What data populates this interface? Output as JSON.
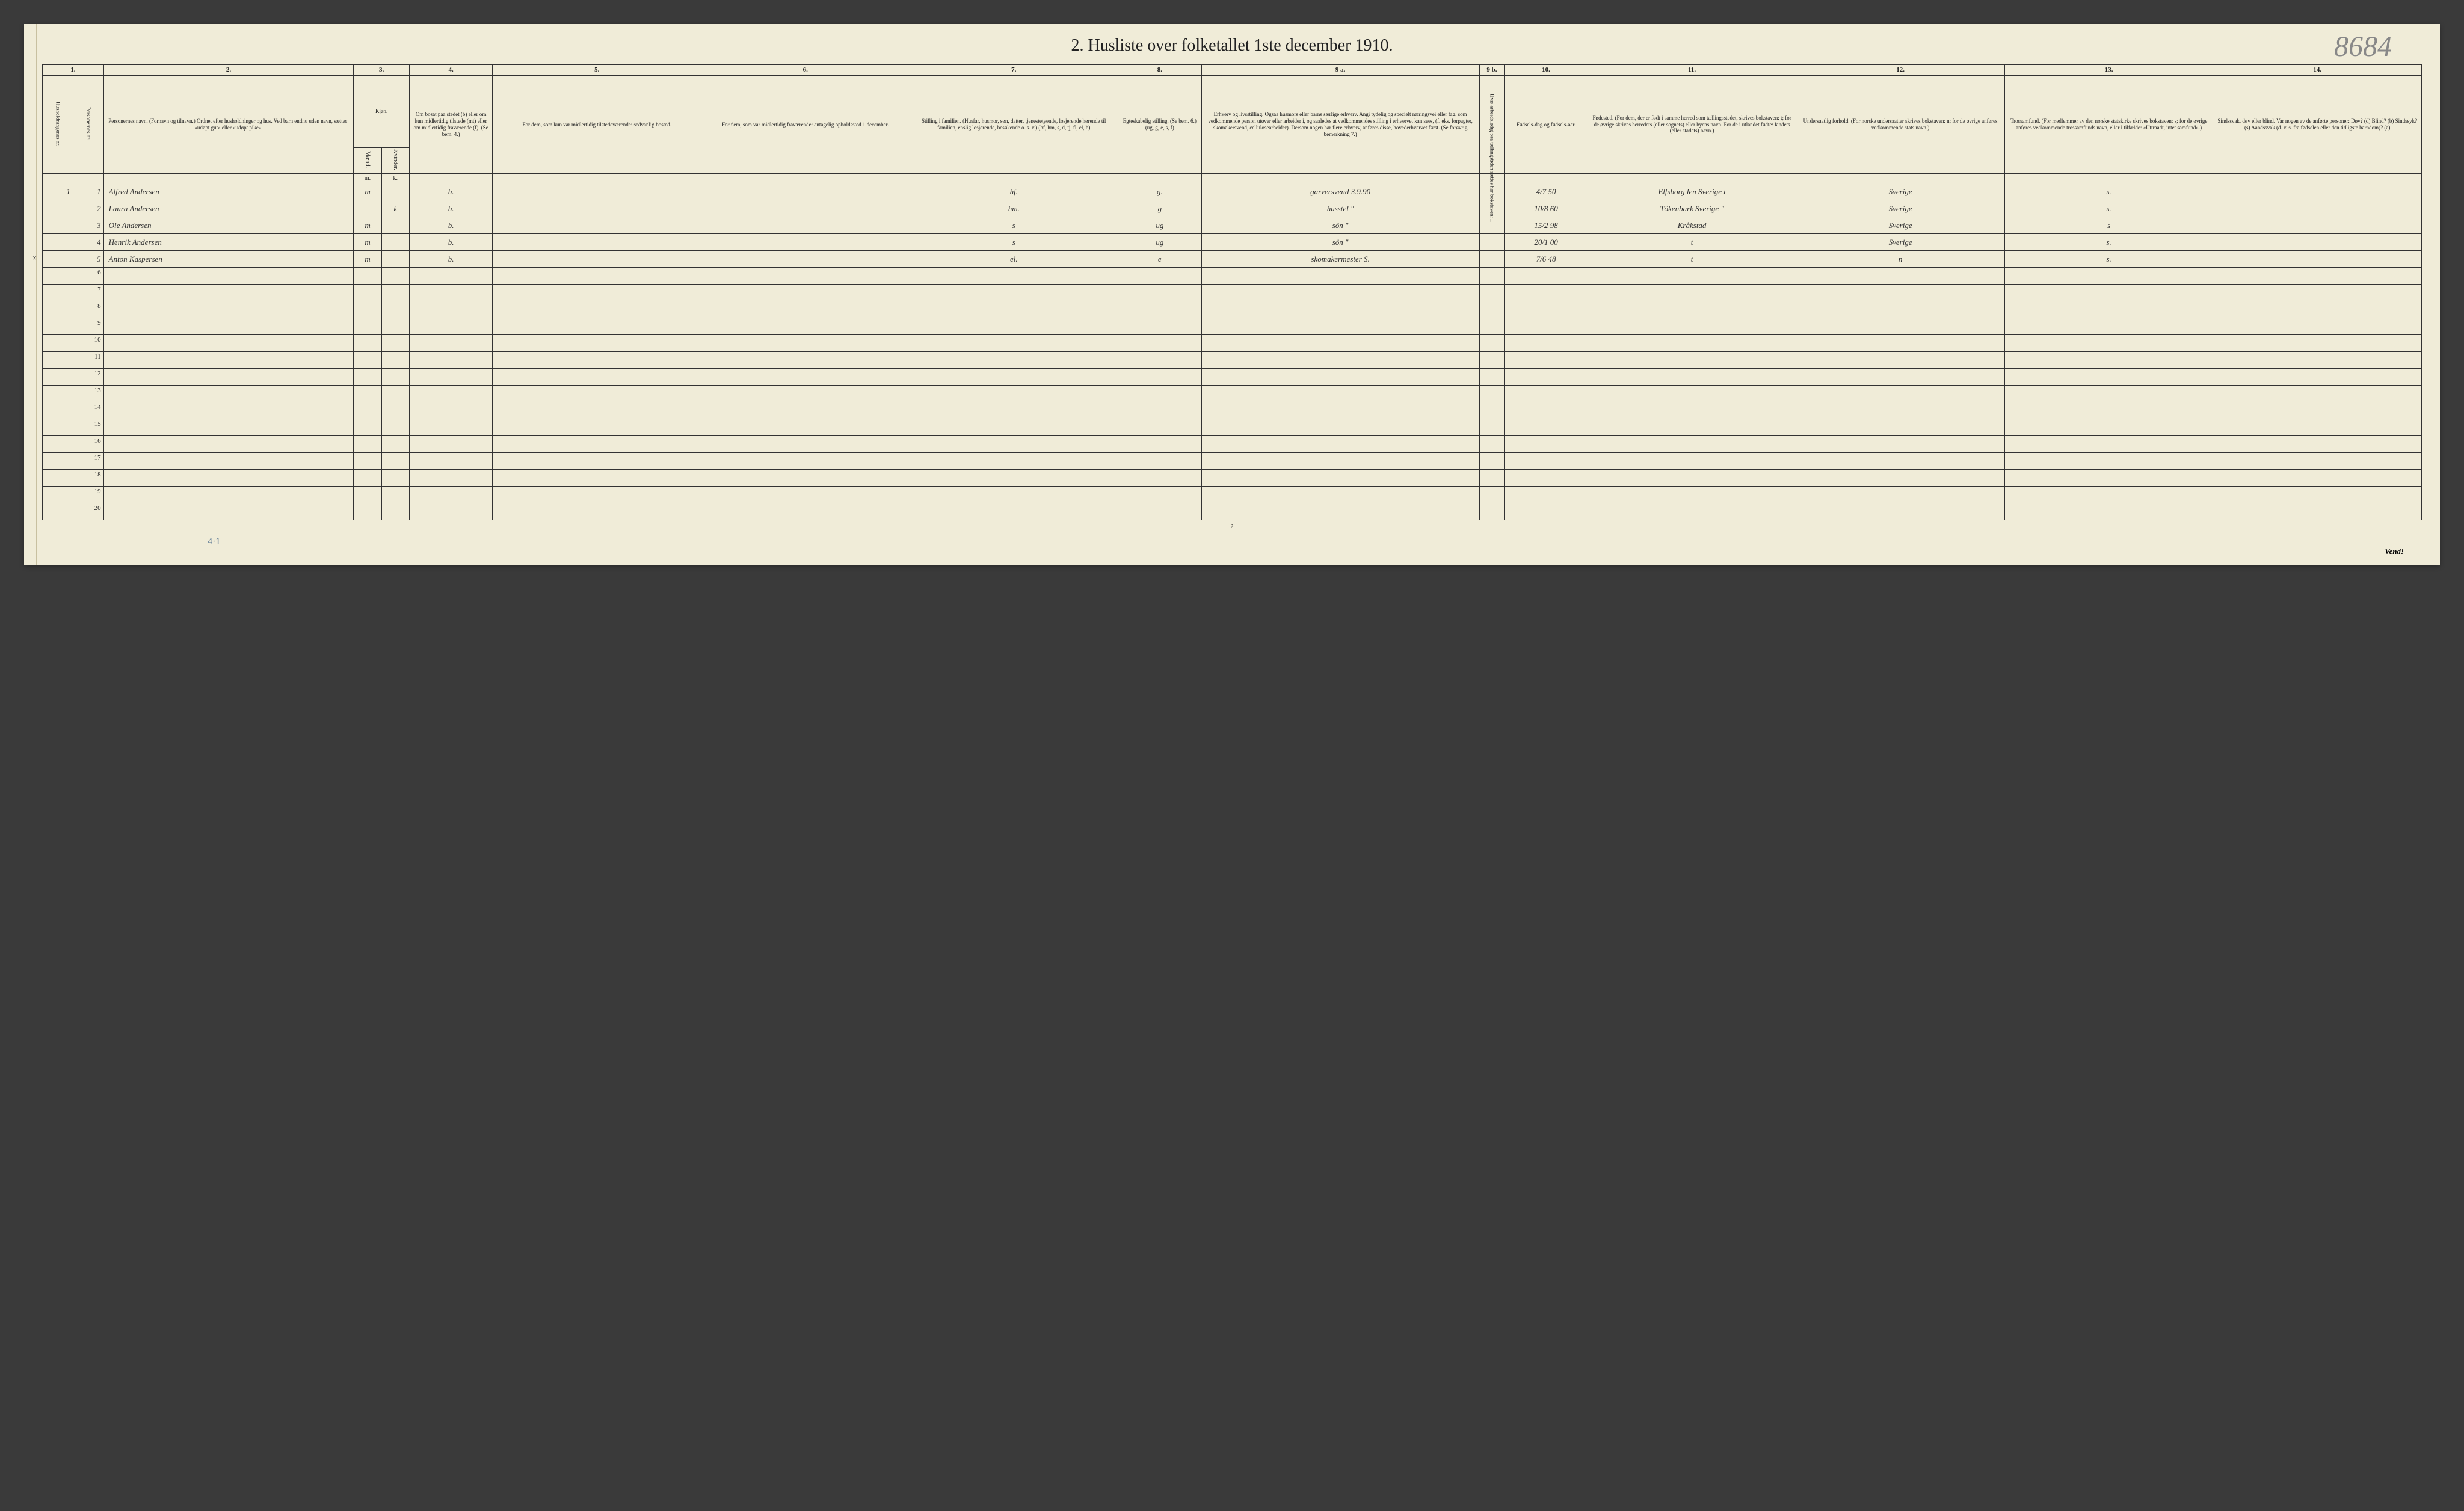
{
  "title": "2.  Husliste over folketallet 1ste december 1910.",
  "handwritten_top": "8684",
  "handwritten_bottom": "4·1",
  "footer": "Vend!",
  "page_number": "2",
  "column_numbers": [
    "1.",
    "",
    "2.",
    "3.",
    "4.",
    "5.",
    "6.",
    "7.",
    "8.",
    "9 a.",
    "9 b.",
    "10.",
    "11.",
    "12.",
    "13.",
    "14."
  ],
  "headers": {
    "col1": "Husholdningenes nr.",
    "col1b": "Personernes nr.",
    "col2": "Personernes navn.\n(Fornavn og tilnavn.)\nOrdnet efter husholdninger og hus.\nVed barn endnu uden navn, sættes: «udøpt gut» eller «udøpt pike».",
    "col3a": "Kjøn.",
    "col3b": "Mænd.",
    "col3c": "Kvinder.",
    "col4": "Om bosat paa stedet (b) eller om kun midlertidig tilstede (mt) eller om midlertidig fraværende (f).\n(Se bem. 4.)",
    "col5": "For dem, som kun var midlertidig tilstedeværende:\nsedvanlig bosted.",
    "col6": "For dem, som var midlertidig fraværende:\nantagelig opholdssted 1 december.",
    "col7": "Stilling i familien.\n(Husfar, husmor, søn, datter, tjenestetyende, losjerende hørende til familien, enslig losjerende, besøkende o. s. v.)\n(hf, hm, s, d, tj, fl, el, b)",
    "col8": "Egteskabelig stilling.\n(Se bem. 6.)\n(ug, g, e, s, f)",
    "col9a": "Erhverv og livsstilling.\nOgsaa husmors eller barns særlige erhverv.\nAngi tydelig og specielt næringsvei eller fag, som vedkommende person utøver eller arbeider i, og saaledes at vedkommendes stilling i erhvervet kan sees, (f. eks. forpagter, skomakersvend, cellulosearbeider). Dersom nogen har flere erhverv, anføres disse, hovederhvervet først.\n(Se forøvrig bemerkning 7.)",
    "col9b": "Hvis arbeidsledig paa tællingstiden sættes her bokstaven: l.",
    "col10": "Fødsels-dag og fødsels-aar.",
    "col11": "Fødested.\n(For dem, der er født i samme herred som tællingsstedet, skrives bokstaven: t; for de øvrige skrives herredets (eller sognets) eller byens navn. For de i utlandet fødte: landets (eller stadets) navn.)",
    "col12": "Undersaatlig forhold.\n(For norske undersaatter skrives bokstaven: n; for de øvrige anføres vedkommende stats navn.)",
    "col13": "Trossamfund.\n(For medlemmer av den norske statskirke skrives bokstaven: s; for de øvrige anføres vedkommende trossamfunds navn, eller i tilfælde: «Uttraadt, intet samfund».)",
    "col14": "Sindssvak, døv eller blind.\nVar nogen av de anførte personer:\nDøv? (d)\nBlind? (b)\nSindssyk? (s)\nAandssvak (d. v. s. fra fødselen eller den tidligste barndom)? (a)"
  },
  "rows": [
    {
      "hnum": "1",
      "pnum": "1",
      "name": "Alfred Andersen",
      "m": "m",
      "k": "",
      "status": "b.",
      "col5": "",
      "col6": "",
      "col7": "hf.",
      "col8": "g.",
      "col9a": "garversvend 3.9.90",
      "col9b": "",
      "col10": "4/7 50",
      "col11": "Elfsborg len Sverige t",
      "col12": "Sverige",
      "col13": "s.",
      "col14": ""
    },
    {
      "hnum": "",
      "pnum": "2",
      "name": "Laura Andersen",
      "m": "",
      "k": "k",
      "status": "b.",
      "col5": "",
      "col6": "",
      "col7": "hm.",
      "col8": "g",
      "col9a": "husstel \"",
      "col9b": "",
      "col10": "10/8 60",
      "col11": "Tökenbark Sverige \"",
      "col12": "Sverige",
      "col13": "s.",
      "col14": ""
    },
    {
      "hnum": "",
      "pnum": "3",
      "name": "Ole Andersen",
      "m": "m",
      "k": "",
      "status": "b.",
      "col5": "",
      "col6": "",
      "col7": "s",
      "col8": "ug",
      "col9a": "sön \"",
      "col9b": "",
      "col10": "15/2 98",
      "col11": "Kråkstad",
      "col12": "Sverige",
      "col13": "s",
      "col14": ""
    },
    {
      "hnum": "",
      "pnum": "4",
      "name": "Henrik Andersen",
      "m": "m",
      "k": "",
      "status": "b.",
      "col5": "",
      "col6": "",
      "col7": "s",
      "col8": "ug",
      "col9a": "sön \"",
      "col9b": "",
      "col10": "20/1 00",
      "col11": "t",
      "col12": "Sverige",
      "col13": "s.",
      "col14": ""
    },
    {
      "hnum": "",
      "pnum": "5",
      "name": "Anton Kaspersen",
      "m": "m",
      "k": "",
      "status": "b.",
      "col5": "",
      "col6": "",
      "col7": "el.",
      "col8": "e",
      "col9a": "skomakermester S.",
      "col9b": "",
      "col10": "7/6 48",
      "col11": "t",
      "col12": "n",
      "col13": "s.",
      "col14": "",
      "xmark": true
    }
  ],
  "empty_rows": [
    6,
    7,
    8,
    9,
    10,
    11,
    12,
    13,
    14,
    15,
    16,
    17,
    18,
    19,
    20
  ],
  "sub_headers": {
    "m": "m.",
    "k": "k."
  }
}
